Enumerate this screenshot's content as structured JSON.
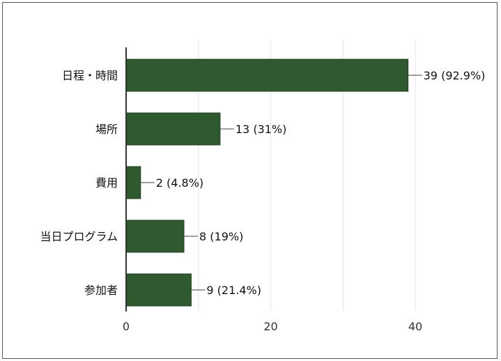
{
  "chart_data": {
    "type": "bar",
    "orientation": "horizontal",
    "categories": [
      "日程・時間",
      "場所",
      "費用",
      "当日プログラム",
      "参加者"
    ],
    "values": [
      39,
      13,
      2,
      8,
      9
    ],
    "data_labels": [
      "39 (92.9%)",
      "13 (31%)",
      "2 (4.8%)",
      "8 (19%)",
      "9 (21.4%)"
    ],
    "xlim": [
      0,
      40
    ],
    "x_ticks": [
      0,
      20,
      40
    ],
    "x_tick_labels": [
      "0",
      "20",
      "40"
    ],
    "grid": true,
    "bar_color": "#2f5a30",
    "grid_color": "#e3e3e3",
    "axis_color": "#333333"
  }
}
